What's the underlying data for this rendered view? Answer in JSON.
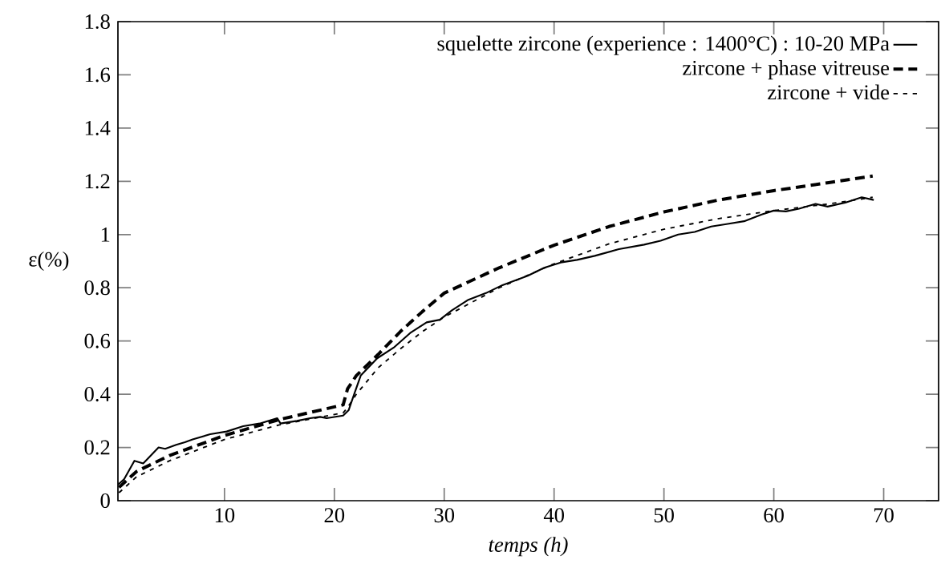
{
  "chart_data": {
    "type": "line",
    "xlabel": "temps (h)",
    "ylabel": "ε(%)",
    "xlim": [
      0.3,
      75
    ],
    "ylim": [
      0,
      1.8
    ],
    "xticks": [
      10,
      20,
      30,
      40,
      50,
      60,
      70
    ],
    "yticks": [
      0,
      0.2,
      0.4,
      0.6,
      0.8,
      1,
      1.2,
      1.4,
      1.6,
      1.8
    ],
    "legend": "top right",
    "grid": false,
    "series": [
      {
        "name": "squelette zircone (experience : 1400°C) : 10-20 MPa",
        "color": "#000000",
        "line_style": "solid",
        "x": [
          0.3,
          0.85,
          1.8,
          2.6,
          3.3,
          4,
          4.6,
          5.6,
          6.4,
          7.1,
          8.7,
          10.2,
          11.7,
          13.2,
          14.8,
          15.1,
          16.6,
          17.8,
          18.7,
          19.3,
          20.8,
          21.3,
          21.8,
          22.4,
          23.9,
          25.4,
          26.9,
          28.4,
          29.6,
          30.7,
          32.2,
          33.8,
          35.3,
          37.6,
          39.1,
          40.6,
          42.1,
          43.7,
          45.9,
          48.2,
          49.7,
          51.3,
          52.8,
          54.3,
          55.8,
          57.3,
          58.9,
          60,
          61.1,
          62.3,
          63.8,
          64.9,
          66.5,
          68,
          69.1
        ],
        "values": [
          0.06,
          0.08,
          0.15,
          0.14,
          0.17,
          0.2,
          0.195,
          0.21,
          0.22,
          0.23,
          0.25,
          0.26,
          0.28,
          0.29,
          0.31,
          0.29,
          0.3,
          0.31,
          0.315,
          0.31,
          0.32,
          0.34,
          0.4,
          0.47,
          0.535,
          0.575,
          0.63,
          0.67,
          0.68,
          0.715,
          0.755,
          0.78,
          0.81,
          0.845,
          0.875,
          0.895,
          0.905,
          0.92,
          0.945,
          0.962,
          0.977,
          1.0,
          1.01,
          1.03,
          1.04,
          1.05,
          1.075,
          1.09,
          1.087,
          1.097,
          1.115,
          1.105,
          1.12,
          1.14,
          1.13
        ]
      },
      {
        "name": "zircone + phase vitreuse",
        "color": "#000000",
        "line_style": "dashed",
        "x": [
          0.4,
          2,
          5,
          10,
          15,
          20.8,
          21.2,
          22,
          24,
          26,
          28,
          30,
          35,
          40,
          45,
          50,
          55,
          60,
          65,
          69
        ],
        "values": [
          0.05,
          0.11,
          0.17,
          0.245,
          0.305,
          0.36,
          0.42,
          0.47,
          0.55,
          0.635,
          0.71,
          0.78,
          0.875,
          0.96,
          1.03,
          1.085,
          1.13,
          1.165,
          1.195,
          1.22
        ]
      },
      {
        "name": "zircone + vide",
        "color": "#000000",
        "line_style": "dotted",
        "x": [
          0.4,
          2,
          5,
          10,
          15,
          20.8,
          21.2,
          22,
          24,
          26,
          28,
          30,
          35,
          40,
          45,
          50,
          55,
          60,
          65,
          69
        ],
        "values": [
          0.03,
          0.09,
          0.15,
          0.23,
          0.285,
          0.33,
          0.35,
          0.4,
          0.5,
          0.57,
          0.635,
          0.69,
          0.8,
          0.89,
          0.965,
          1.02,
          1.06,
          1.09,
          1.115,
          1.14
        ]
      }
    ]
  }
}
